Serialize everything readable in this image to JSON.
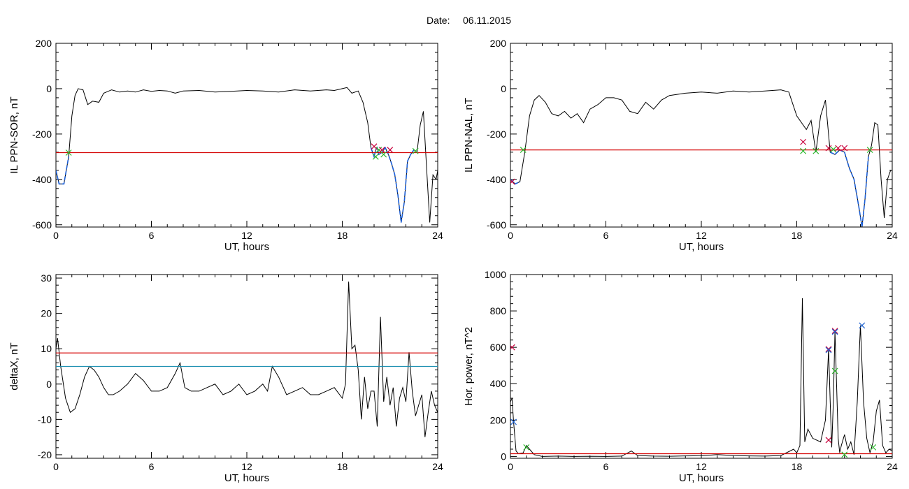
{
  "header": {
    "date_label": "Date:",
    "date_value": "06.11.2015"
  },
  "colors": {
    "trace": "#000000",
    "threshold_red": "#d40000",
    "threshold_cyan": "#1a8fb0",
    "segment_blue": "#1b5fd8",
    "marker_red": "#c8003c",
    "marker_green": "#2db82d",
    "marker_blue": "#1f62d0"
  },
  "chart_data": [
    {
      "type": "line",
      "id": "ppn-sor",
      "xlabel": "UT, hours",
      "ylabel": "IL PPN-SOR, nT",
      "xlim": [
        0,
        24
      ],
      "ylim": [
        -610,
        200
      ],
      "xticks": [
        0,
        6,
        12,
        18,
        24
      ],
      "yticks": [
        -600,
        -400,
        -200,
        0,
        200
      ],
      "x": [
        0,
        0.2,
        0.5,
        0.8,
        1.0,
        1.2,
        1.4,
        1.7,
        2.0,
        2.3,
        2.7,
        3.0,
        3.5,
        4.0,
        4.5,
        5.0,
        5.5,
        6.0,
        6.5,
        7.0,
        7.5,
        8.0,
        9.0,
        10.0,
        11.0,
        12.0,
        13.0,
        14.0,
        15.0,
        16.0,
        17.0,
        17.5,
        18.0,
        18.3,
        18.6,
        19.0,
        19.3,
        19.6,
        19.8,
        20.0,
        20.1,
        20.2,
        20.3,
        20.5,
        20.7,
        20.9,
        21.1,
        21.3,
        21.5,
        21.7,
        21.9,
        22.1,
        22.3,
        22.5,
        22.7,
        22.9,
        23.1,
        23.3,
        23.5,
        23.7,
        23.9,
        24.0
      ],
      "y": [
        -360,
        -420,
        -420,
        -300,
        -120,
        -30,
        0,
        -5,
        -70,
        -55,
        -60,
        -20,
        -5,
        -15,
        -10,
        -15,
        -5,
        -12,
        -8,
        -10,
        -20,
        -10,
        -8,
        -15,
        -12,
        -8,
        -10,
        -15,
        -5,
        -10,
        -5,
        -8,
        0,
        5,
        -20,
        -10,
        -60,
        -150,
        -260,
        -300,
        -270,
        -260,
        -290,
        -280,
        -260,
        -290,
        -330,
        -380,
        -470,
        -590,
        -500,
        -320,
        -290,
        -270,
        -280,
        -160,
        -100,
        -350,
        -590,
        -380,
        -400,
        -360
      ],
      "thresholds": [
        {
          "y": -282,
          "color": "red"
        }
      ],
      "highlight_segments": [
        [
          0.0,
          0.8
        ],
        [
          19.8,
          22.6
        ]
      ],
      "markers": [
        {
          "x": 0.8,
          "y": -282,
          "color": "green"
        },
        {
          "x": 20.0,
          "y": -255,
          "color": "red"
        },
        {
          "x": 20.1,
          "y": -300,
          "color": "green"
        },
        {
          "x": 20.3,
          "y": -270,
          "color": "green"
        },
        {
          "x": 20.5,
          "y": -270,
          "color": "red"
        },
        {
          "x": 20.6,
          "y": -290,
          "color": "green"
        },
        {
          "x": 21.0,
          "y": -270,
          "color": "red"
        },
        {
          "x": 22.6,
          "y": -275,
          "color": "green"
        }
      ]
    },
    {
      "type": "line",
      "id": "ppn-nal",
      "xlabel": "UT, hours",
      "ylabel": "IL PPN-NAL, nT",
      "xlim": [
        0,
        24
      ],
      "ylim": [
        -610,
        200
      ],
      "xticks": [
        0,
        6,
        12,
        18,
        24
      ],
      "yticks": [
        -600,
        -400,
        -200,
        0,
        200
      ],
      "x": [
        0,
        0.3,
        0.6,
        0.9,
        1.2,
        1.5,
        1.8,
        2.2,
        2.6,
        3.0,
        3.4,
        3.8,
        4.2,
        4.6,
        5.0,
        5.5,
        6.0,
        6.5,
        7.0,
        7.5,
        8.0,
        8.5,
        9.0,
        9.5,
        10.0,
        11.0,
        12.0,
        13.0,
        14.0,
        15.0,
        16.0,
        17.0,
        17.5,
        18.0,
        18.3,
        18.6,
        18.9,
        19.2,
        19.5,
        19.8,
        20.1,
        20.4,
        20.7,
        21.0,
        21.3,
        21.6,
        21.9,
        22.1,
        22.3,
        22.5,
        22.7,
        22.9,
        23.1,
        23.3,
        23.5,
        23.7,
        23.9,
        24.0
      ],
      "y": [
        -400,
        -420,
        -410,
        -280,
        -120,
        -50,
        -30,
        -60,
        -110,
        -120,
        -100,
        -130,
        -110,
        -150,
        -90,
        -70,
        -40,
        -40,
        -50,
        -100,
        -110,
        -60,
        -90,
        -50,
        -30,
        -20,
        -15,
        -20,
        -10,
        -15,
        -10,
        -5,
        -15,
        -120,
        -150,
        -180,
        -140,
        -280,
        -120,
        -50,
        -280,
        -290,
        -270,
        -280,
        -350,
        -400,
        -520,
        -610,
        -480,
        -300,
        -250,
        -150,
        -160,
        -400,
        -570,
        -400,
        -360,
        -360
      ],
      "thresholds": [
        {
          "y": -270,
          "color": "red"
        }
      ],
      "highlight_segments": [
        [
          0.0,
          0.8
        ],
        [
          20.1,
          22.6
        ]
      ],
      "markers": [
        {
          "x": 0.1,
          "y": -410,
          "color": "red"
        },
        {
          "x": 0.8,
          "y": -270,
          "color": "green"
        },
        {
          "x": 18.4,
          "y": -235,
          "color": "red"
        },
        {
          "x": 18.4,
          "y": -275,
          "color": "green"
        },
        {
          "x": 19.2,
          "y": -275,
          "color": "green"
        },
        {
          "x": 20.0,
          "y": -262,
          "color": "red"
        },
        {
          "x": 20.3,
          "y": -268,
          "color": "green"
        },
        {
          "x": 20.6,
          "y": -262,
          "color": "red"
        },
        {
          "x": 21.0,
          "y": -262,
          "color": "red"
        },
        {
          "x": 22.6,
          "y": -270,
          "color": "green"
        }
      ]
    },
    {
      "type": "line",
      "id": "deltax",
      "xlabel": "UT, hours",
      "ylabel": "deltaX, nT",
      "xlim": [
        0,
        24
      ],
      "ylim": [
        -21,
        31
      ],
      "xticks": [
        0,
        6,
        12,
        18,
        24
      ],
      "yticks": [
        -20,
        -10,
        0,
        10,
        20,
        30
      ],
      "x": [
        0,
        0.1,
        0.3,
        0.6,
        0.9,
        1.2,
        1.5,
        1.8,
        2.1,
        2.4,
        2.7,
        3.0,
        3.3,
        3.6,
        4.0,
        4.5,
        5.0,
        5.5,
        6.0,
        6.5,
        7.0,
        7.5,
        7.8,
        8.1,
        8.5,
        9.0,
        9.5,
        10.0,
        10.5,
        11.0,
        11.5,
        12.0,
        12.5,
        13.0,
        13.3,
        13.6,
        14.0,
        14.5,
        15.0,
        15.5,
        16.0,
        16.5,
        17.0,
        17.5,
        18.0,
        18.2,
        18.4,
        18.6,
        18.8,
        19.0,
        19.2,
        19.4,
        19.6,
        19.8,
        20.0,
        20.2,
        20.4,
        20.6,
        20.8,
        21.0,
        21.2,
        21.4,
        21.6,
        21.8,
        22.0,
        22.2,
        22.4,
        22.6,
        22.8,
        23.0,
        23.2,
        23.4,
        23.6,
        23.8,
        24.0
      ],
      "y": [
        10,
        13,
        5,
        -4,
        -8,
        -7,
        -3,
        2,
        5,
        4,
        2,
        -1,
        -3,
        -3,
        -2,
        0,
        3,
        1,
        -2,
        -2,
        -1,
        3,
        6,
        -1,
        -2,
        -2,
        -1,
        0,
        -3,
        -2,
        0,
        -3,
        -2,
        0,
        -2,
        5,
        2,
        -3,
        -2,
        -1,
        -3,
        -3,
        -2,
        -1,
        -4,
        0,
        29,
        10,
        11,
        4,
        -10,
        2,
        -7,
        -2,
        -2,
        -12,
        19,
        -5,
        2,
        -6,
        -1,
        -12,
        -4,
        -1,
        -5,
        9,
        -2,
        -9,
        -6,
        -3,
        -15,
        -8,
        -2,
        -6,
        -8
      ],
      "thresholds": [
        {
          "y": 8.8,
          "color": "red"
        },
        {
          "y": 5.0,
          "color": "cyan"
        }
      ],
      "highlight_segments": [],
      "markers": []
    },
    {
      "type": "line",
      "id": "hor-power",
      "xlabel": "UT, hours",
      "ylabel": "Hor. power, nT^2",
      "xlim": [
        0,
        24
      ],
      "ylim": [
        -10,
        1000
      ],
      "xticks": [
        0,
        6,
        12,
        18,
        24
      ],
      "yticks": [
        0,
        200,
        400,
        600,
        800,
        1000
      ],
      "x": [
        0,
        0.1,
        0.2,
        0.35,
        0.5,
        0.8,
        1.0,
        1.2,
        1.5,
        2.0,
        3.0,
        4.0,
        5.0,
        6.0,
        7.0,
        7.6,
        8.0,
        9.0,
        10.0,
        11.0,
        12.0,
        13.0,
        14.0,
        15.0,
        16.0,
        17.0,
        17.8,
        18.0,
        18.2,
        18.35,
        18.5,
        18.7,
        19.0,
        19.5,
        19.8,
        20.0,
        20.1,
        20.2,
        20.3,
        20.4,
        20.5,
        20.6,
        20.7,
        20.8,
        21.0,
        21.2,
        21.4,
        21.6,
        21.8,
        22.0,
        22.2,
        22.4,
        22.6,
        22.8,
        23.0,
        23.2,
        23.4,
        23.6,
        23.8,
        24.0
      ],
      "y": [
        300,
        320,
        190,
        30,
        15,
        20,
        60,
        40,
        10,
        0,
        2,
        0,
        1,
        0,
        2,
        30,
        5,
        2,
        1,
        3,
        4,
        10,
        5,
        3,
        2,
        5,
        40,
        20,
        60,
        870,
        80,
        150,
        100,
        80,
        200,
        590,
        300,
        50,
        300,
        690,
        400,
        100,
        20,
        60,
        120,
        40,
        80,
        10,
        300,
        720,
        300,
        100,
        20,
        80,
        250,
        310,
        60,
        20,
        40,
        30
      ],
      "thresholds": [
        {
          "y": 15,
          "color": "red"
        }
      ],
      "highlight_segments": [],
      "markers": [
        {
          "x": 0.1,
          "y": 600,
          "color": "red"
        },
        {
          "x": 0.2,
          "y": 190,
          "color": "blue"
        },
        {
          "x": 1.0,
          "y": 50,
          "color": "green"
        },
        {
          "x": 20.0,
          "y": 590,
          "color": "red"
        },
        {
          "x": 20.0,
          "y": 585,
          "color": "blue"
        },
        {
          "x": 20.0,
          "y": 90,
          "color": "red"
        },
        {
          "x": 20.4,
          "y": 690,
          "color": "red"
        },
        {
          "x": 20.4,
          "y": 685,
          "color": "blue"
        },
        {
          "x": 20.4,
          "y": 470,
          "color": "green"
        },
        {
          "x": 21.0,
          "y": 10,
          "color": "green"
        },
        {
          "x": 22.1,
          "y": 720,
          "color": "blue"
        },
        {
          "x": 22.8,
          "y": 50,
          "color": "green"
        }
      ]
    }
  ]
}
